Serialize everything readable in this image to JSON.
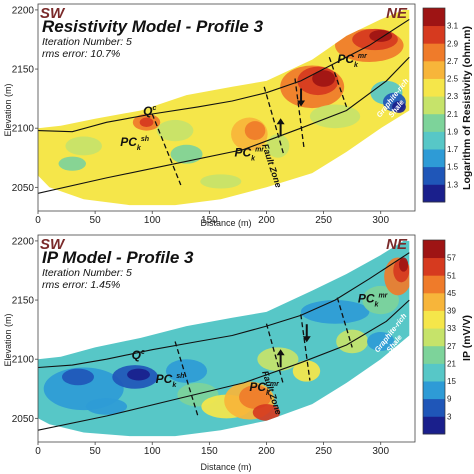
{
  "chart_data": [
    {
      "type": "heatmap",
      "title": "Resistivity Model - Profile 3",
      "iteration": "Iteration Number: 5",
      "rms": "rms error: 10.7%",
      "dir_left": "SW",
      "dir_right": "NE",
      "xlabel": "Distance (m)",
      "ylabel": "Elevation (m)",
      "xlim": [
        0,
        330
      ],
      "ylim": [
        2030,
        2205
      ],
      "xticks": [
        0,
        50,
        100,
        150,
        200,
        250,
        300
      ],
      "yticks": [
        2050,
        2100,
        2150,
        2200
      ],
      "colorbar_label": "Logarithm of Resistivity (ohm.m)",
      "colorbar_ticks": [
        1.3,
        1.5,
        1.7,
        1.9,
        2.1,
        2.3,
        2.5,
        2.7,
        2.9,
        3.1
      ],
      "colorbar_colors": [
        "#1a1f8c",
        "#1f56b8",
        "#2e9bd6",
        "#57c7c7",
        "#7dd39a",
        "#c6e36a",
        "#f5e64a",
        "#f7b53a",
        "#ef7b2a",
        "#d63a1f",
        "#9e1414"
      ],
      "units": [
        {
          "base": "Q",
          "sup": "c",
          "sub": "",
          "x": 92,
          "y": 2111
        },
        {
          "base": "PC",
          "sup": "sh",
          "sub": "k",
          "x": 72,
          "y": 2085
        },
        {
          "base": "PC",
          "sup": "mr",
          "sub": "k",
          "x": 172,
          "y": 2076
        },
        {
          "base": "PC",
          "sup": "mr",
          "sub": "k",
          "x": 262,
          "y": 2155
        }
      ],
      "fault_zone_label": "Fault Zone",
      "shale_label_1": "Graphite-rich",
      "shale_label_2": "Shale",
      "body_fill": "#f5e64a",
      "anomalies": [
        {
          "x": 95,
          "y": 2105,
          "rx": 12,
          "ry": 7,
          "color": "#ef7b2a"
        },
        {
          "x": 95,
          "y": 2105,
          "rx": 6,
          "ry": 4,
          "color": "#d63a1f"
        },
        {
          "x": 120,
          "y": 2098,
          "rx": 16,
          "ry": 9,
          "color": "#c6e36a"
        },
        {
          "x": 130,
          "y": 2078,
          "rx": 14,
          "ry": 8,
          "color": "#7dd39a"
        },
        {
          "x": 40,
          "y": 2085,
          "rx": 16,
          "ry": 8,
          "color": "#c6e36a"
        },
        {
          "x": 30,
          "y": 2070,
          "rx": 12,
          "ry": 6,
          "color": "#7dd39a"
        },
        {
          "x": 160,
          "y": 2055,
          "rx": 18,
          "ry": 6,
          "color": "#c6e36a"
        },
        {
          "x": 185,
          "y": 2095,
          "rx": 16,
          "ry": 14,
          "color": "#f7b53a"
        },
        {
          "x": 190,
          "y": 2098,
          "rx": 9,
          "ry": 8,
          "color": "#ef7b2a"
        },
        {
          "x": 210,
          "y": 2085,
          "rx": 10,
          "ry": 10,
          "color": "#c6e36a"
        },
        {
          "x": 240,
          "y": 2135,
          "rx": 28,
          "ry": 18,
          "color": "#ef7b2a"
        },
        {
          "x": 245,
          "y": 2140,
          "rx": 18,
          "ry": 12,
          "color": "#d63a1f"
        },
        {
          "x": 250,
          "y": 2142,
          "rx": 10,
          "ry": 7,
          "color": "#9e1414"
        },
        {
          "x": 290,
          "y": 2170,
          "rx": 30,
          "ry": 14,
          "color": "#ef7b2a"
        },
        {
          "x": 295,
          "y": 2175,
          "rx": 20,
          "ry": 9,
          "color": "#d63a1f"
        },
        {
          "x": 300,
          "y": 2178,
          "rx": 10,
          "ry": 5,
          "color": "#9e1414"
        },
        {
          "x": 305,
          "y": 2130,
          "rx": 14,
          "ry": 10,
          "color": "#57c7c7"
        },
        {
          "x": 312,
          "y": 2122,
          "rx": 10,
          "ry": 8,
          "color": "#1f56b8"
        },
        {
          "x": 316,
          "y": 2118,
          "rx": 6,
          "ry": 5,
          "color": "#1a1f8c"
        },
        {
          "x": 260,
          "y": 2110,
          "rx": 22,
          "ry": 10,
          "color": "#c6e36a"
        }
      ],
      "outline_top": [
        [
          0,
          2100
        ],
        [
          20,
          2102
        ],
        [
          50,
          2108
        ],
        [
          90,
          2115
        ],
        [
          130,
          2128
        ],
        [
          170,
          2135
        ],
        [
          200,
          2140
        ],
        [
          240,
          2158
        ],
        [
          270,
          2178
        ],
        [
          300,
          2192
        ],
        [
          320,
          2200
        ],
        [
          325,
          2200
        ]
      ],
      "outline_bottom": [
        [
          325,
          2115
        ],
        [
          300,
          2100
        ],
        [
          270,
          2080
        ],
        [
          240,
          2062
        ],
        [
          200,
          2050
        ],
        [
          160,
          2040
        ],
        [
          120,
          2035
        ],
        [
          80,
          2035
        ],
        [
          40,
          2040
        ],
        [
          10,
          2050
        ],
        [
          0,
          2060
        ]
      ],
      "contacts": [
        [
          [
            0,
            2098
          ],
          [
            30,
            2097
          ],
          [
            60,
            2105
          ],
          [
            100,
            2112
          ],
          [
            140,
            2118
          ],
          [
            170,
            2123
          ],
          [
            200,
            2130
          ],
          [
            230,
            2140
          ],
          [
            260,
            2155
          ],
          [
            290,
            2170
          ],
          [
            325,
            2192
          ]
        ],
        [
          [
            0,
            2045
          ],
          [
            60,
            2058
          ],
          [
            120,
            2070
          ],
          [
            180,
            2082
          ],
          [
            230,
            2100
          ],
          [
            270,
            2115
          ],
          [
            305,
            2140
          ],
          [
            325,
            2160
          ]
        ]
      ],
      "faults": [
        [
          [
            100,
            2112
          ],
          [
            125,
            2052
          ]
        ],
        [
          [
            198,
            2135
          ],
          [
            215,
            2078
          ]
        ],
        [
          [
            225,
            2142
          ],
          [
            233,
            2082
          ]
        ],
        [
          [
            255,
            2160
          ],
          [
            270,
            2118
          ]
        ]
      ]
    },
    {
      "type": "heatmap",
      "title": "IP Model - Profile 3",
      "iteration": "Iteration Number: 5",
      "rms": "rms error: 1.45%",
      "dir_left": "SW",
      "dir_right": "NE",
      "xlabel": "Distance (m)",
      "ylabel": "Elevation (m)",
      "xlim": [
        0,
        330
      ],
      "ylim": [
        2030,
        2205
      ],
      "xticks": [
        0,
        50,
        100,
        150,
        200,
        250,
        300
      ],
      "yticks": [
        2050,
        2100,
        2150,
        2200
      ],
      "colorbar_label": "IP (mV/V)",
      "colorbar_ticks": [
        3,
        9,
        15,
        21,
        27,
        33,
        39,
        45,
        51,
        57
      ],
      "colorbar_colors": [
        "#1a1f8c",
        "#1f56b8",
        "#2e9bd6",
        "#57c7c7",
        "#7dd39a",
        "#c6e36a",
        "#f5e64a",
        "#f7b53a",
        "#ef7b2a",
        "#d63a1f",
        "#9e1414"
      ],
      "units": [
        {
          "base": "Q",
          "sup": "c",
          "sub": "",
          "x": 82,
          "y": 2100
        },
        {
          "base": "PC",
          "sup": "sh",
          "sub": "k",
          "x": 103,
          "y": 2080
        },
        {
          "base": "PC",
          "sup": "mr",
          "sub": "k",
          "x": 185,
          "y": 2073
        },
        {
          "base": "PC",
          "sup": "mr",
          "sub": "k",
          "x": 280,
          "y": 2148
        }
      ],
      "fault_zone_label": "Fault Zone",
      "shale_label_1": "Graphite-rich",
      "shale_label_2": "Shale",
      "body_fill": "#57c7c7",
      "anomalies": [
        {
          "x": 40,
          "y": 2075,
          "rx": 35,
          "ry": 18,
          "color": "#2e9bd6"
        },
        {
          "x": 35,
          "y": 2085,
          "rx": 14,
          "ry": 7,
          "color": "#1f56b8"
        },
        {
          "x": 85,
          "y": 2085,
          "rx": 20,
          "ry": 10,
          "color": "#1f56b8"
        },
        {
          "x": 88,
          "y": 2087,
          "rx": 10,
          "ry": 5,
          "color": "#1a1f8c"
        },
        {
          "x": 60,
          "y": 2060,
          "rx": 18,
          "ry": 7,
          "color": "#2e9bd6"
        },
        {
          "x": 130,
          "y": 2090,
          "rx": 18,
          "ry": 10,
          "color": "#2e9bd6"
        },
        {
          "x": 140,
          "y": 2070,
          "rx": 18,
          "ry": 10,
          "color": "#7dd39a"
        },
        {
          "x": 165,
          "y": 2060,
          "rx": 22,
          "ry": 10,
          "color": "#f5e64a"
        },
        {
          "x": 185,
          "y": 2065,
          "rx": 22,
          "ry": 16,
          "color": "#f7b53a"
        },
        {
          "x": 190,
          "y": 2068,
          "rx": 14,
          "ry": 10,
          "color": "#ef7b2a"
        },
        {
          "x": 200,
          "y": 2055,
          "rx": 12,
          "ry": 7,
          "color": "#d63a1f"
        },
        {
          "x": 210,
          "y": 2100,
          "rx": 18,
          "ry": 10,
          "color": "#c6e36a"
        },
        {
          "x": 235,
          "y": 2090,
          "rx": 12,
          "ry": 9,
          "color": "#f5e64a"
        },
        {
          "x": 260,
          "y": 2140,
          "rx": 30,
          "ry": 10,
          "color": "#2e9bd6"
        },
        {
          "x": 275,
          "y": 2115,
          "rx": 14,
          "ry": 10,
          "color": "#c6e36a"
        },
        {
          "x": 300,
          "y": 2150,
          "rx": 16,
          "ry": 12,
          "color": "#7dd39a"
        },
        {
          "x": 315,
          "y": 2170,
          "rx": 12,
          "ry": 16,
          "color": "#ef7b2a"
        },
        {
          "x": 318,
          "y": 2175,
          "rx": 7,
          "ry": 10,
          "color": "#d63a1f"
        },
        {
          "x": 320,
          "y": 2180,
          "rx": 4,
          "ry": 6,
          "color": "#9e1414"
        },
        {
          "x": 300,
          "y": 2115,
          "rx": 12,
          "ry": 8,
          "color": "#2e9bd6"
        }
      ],
      "outline_top": [
        [
          0,
          2100
        ],
        [
          20,
          2102
        ],
        [
          50,
          2110
        ],
        [
          90,
          2118
        ],
        [
          130,
          2128
        ],
        [
          170,
          2135
        ],
        [
          200,
          2140
        ],
        [
          240,
          2158
        ],
        [
          270,
          2172
        ],
        [
          300,
          2188
        ],
        [
          320,
          2200
        ],
        [
          325,
          2200
        ]
      ],
      "outline_bottom": [
        [
          325,
          2120
        ],
        [
          300,
          2100
        ],
        [
          270,
          2080
        ],
        [
          240,
          2062
        ],
        [
          200,
          2048
        ],
        [
          160,
          2040
        ],
        [
          120,
          2035
        ],
        [
          80,
          2035
        ],
        [
          40,
          2038
        ],
        [
          10,
          2045
        ],
        [
          0,
          2050
        ]
      ],
      "contacts": [
        [
          [
            0,
            2093
          ],
          [
            30,
            2095
          ],
          [
            60,
            2100
          ],
          [
            100,
            2108
          ],
          [
            140,
            2115
          ],
          [
            170,
            2120
          ],
          [
            200,
            2128
          ],
          [
            230,
            2137
          ],
          [
            260,
            2150
          ],
          [
            290,
            2168
          ],
          [
            325,
            2190
          ]
        ],
        [
          [
            0,
            2040
          ],
          [
            60,
            2052
          ],
          [
            120,
            2066
          ],
          [
            180,
            2080
          ],
          [
            230,
            2097
          ],
          [
            270,
            2112
          ],
          [
            305,
            2132
          ],
          [
            325,
            2150
          ]
        ]
      ],
      "faults": [
        [
          [
            120,
            2115
          ],
          [
            140,
            2052
          ]
        ],
        [
          [
            200,
            2130
          ],
          [
            215,
            2078
          ]
        ],
        [
          [
            230,
            2138
          ],
          [
            238,
            2082
          ]
        ],
        [
          [
            262,
            2152
          ],
          [
            275,
            2110
          ]
        ]
      ]
    }
  ]
}
